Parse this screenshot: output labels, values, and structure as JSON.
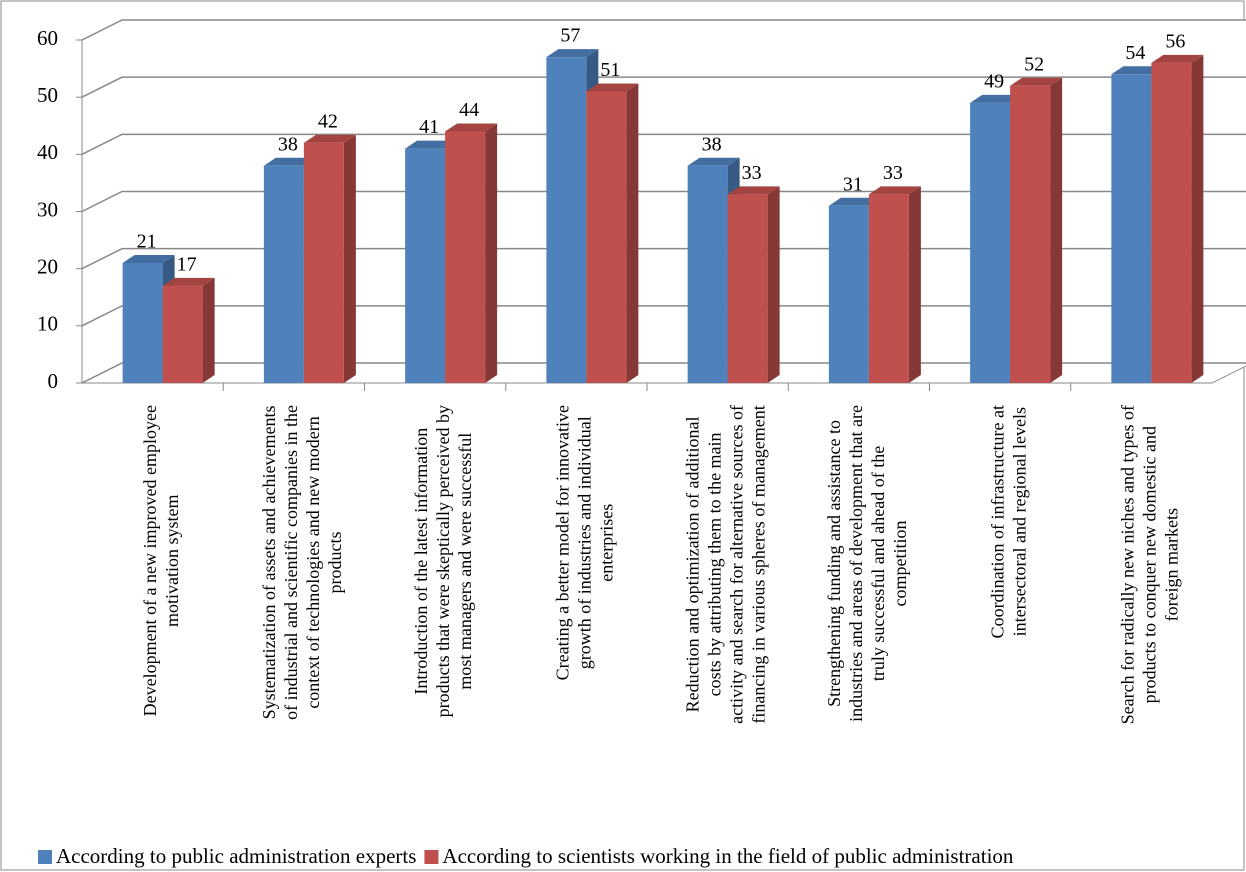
{
  "chart_data": {
    "type": "bar3d",
    "categories": [
      [
        "Development of a new improved employee",
        "motivation system"
      ],
      [
        "Systematization of assets and achievements",
        "of industrial and scientific companies in the",
        "context of technologies and new modern",
        "products"
      ],
      [
        "Introduction of the latest information",
        "products that were skeptically perceived by",
        "most managers and were successful"
      ],
      [
        "Creating a better model for innovative",
        "growth of industries and individual",
        "enterprises"
      ],
      [
        "Reduction and optimization of additional",
        "costs by attributing them to the main",
        "activity and search for alternative sources of",
        "financing in various spheres of management"
      ],
      [
        "Strengthening funding and assistance to",
        "industries and areas of development that are",
        "truly successful and ahead of the",
        "competition"
      ],
      [
        "Coordination of infrastructure at",
        "intersectoral and regional levels"
      ],
      [
        "Search for radically new niches and types of",
        "products to conquer new domestic and",
        "foreign markets"
      ]
    ],
    "series": [
      {
        "name": "According to public administration experts",
        "color": "#4f81bd",
        "values": [
          21,
          38,
          41,
          57,
          38,
          31,
          49,
          54
        ]
      },
      {
        "name": "According to scientists working in the field of public administration",
        "color": "#c0504d",
        "values": [
          17,
          42,
          44,
          51,
          33,
          33,
          52,
          56
        ]
      }
    ],
    "ylim": [
      0,
      60
    ],
    "yticks": [
      0,
      10,
      20,
      30,
      40,
      50,
      60
    ],
    "grid": true,
    "legend": "bottom"
  }
}
